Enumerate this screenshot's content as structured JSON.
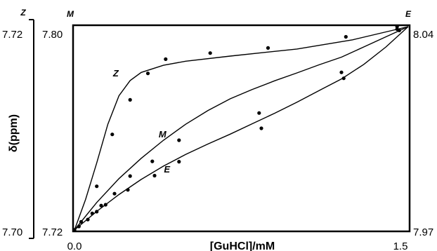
{
  "chart_data": {
    "type": "scatter",
    "title": "",
    "xlabel": "[GuHCl]/mM",
    "ylabel": "δ(ppm)",
    "xlim": [
      0.0,
      1.5
    ],
    "x_ticks": [
      "0.0",
      "1.5"
    ],
    "axes": {
      "Z": {
        "tag": "Z",
        "ylim": [
          7.7,
          7.72
        ],
        "ticks": [
          "7.70",
          "7.72"
        ],
        "side": "far-left"
      },
      "M": {
        "tag": "M",
        "ylim": [
          7.72,
          7.8
        ],
        "ticks": [
          "7.72",
          "7.80"
        ],
        "side": "left"
      },
      "E": {
        "tag": "E",
        "ylim": [
          7.97,
          8.04
        ],
        "ticks": [
          "7.97",
          "8.04"
        ],
        "side": "right"
      }
    },
    "grid": false,
    "legend": "none",
    "series": [
      {
        "name": "Z",
        "axis": "Z",
        "points": [
          [
            0.0,
            7.7
          ],
          [
            0.1,
            7.7043
          ],
          [
            0.17,
            7.7094
          ],
          [
            0.25,
            7.7128
          ],
          [
            0.33,
            7.7154
          ],
          [
            0.41,
            7.7168
          ],
          [
            0.61,
            7.7174
          ],
          [
            0.87,
            7.7179
          ],
          [
            1.22,
            7.719
          ],
          [
            1.45,
            7.72
          ]
        ],
        "fit": [
          [
            0.0,
            7.7
          ],
          [
            0.05,
            7.703
          ],
          [
            0.1,
            7.7066
          ],
          [
            0.15,
            7.7104
          ],
          [
            0.2,
            7.7132
          ],
          [
            0.25,
            7.7147
          ],
          [
            0.3,
            7.7155
          ],
          [
            0.4,
            7.7162
          ],
          [
            0.5,
            7.7166
          ],
          [
            0.7,
            7.7171
          ],
          [
            1.0,
            7.7178
          ],
          [
            1.25,
            7.7187
          ],
          [
            1.5,
            7.72
          ]
        ]
      },
      {
        "name": "M",
        "axis": "M",
        "points": [
          [
            0.0,
            7.72
          ],
          [
            0.03,
            7.7232
          ],
          [
            0.08,
            7.7265
          ],
          [
            0.12,
            7.7296
          ],
          [
            0.18,
            7.7343
          ],
          [
            0.25,
            7.7412
          ],
          [
            0.35,
            7.747
          ],
          [
            0.47,
            7.7553
          ],
          [
            0.83,
            7.766
          ],
          [
            1.2,
            7.782
          ],
          [
            1.45,
            7.799
          ]
        ],
        "fit": [
          [
            0.0,
            7.72
          ],
          [
            0.1,
            7.7308
          ],
          [
            0.2,
            7.7402
          ],
          [
            0.3,
            7.7482
          ],
          [
            0.4,
            7.7553
          ],
          [
            0.5,
            7.7616
          ],
          [
            0.6,
            7.767
          ],
          [
            0.7,
            7.7716
          ],
          [
            0.8,
            7.7753
          ],
          [
            0.9,
            7.7787
          ],
          [
            1.0,
            7.7818
          ],
          [
            1.1,
            7.785
          ],
          [
            1.2,
            7.788
          ],
          [
            1.3,
            7.792
          ],
          [
            1.4,
            7.796
          ],
          [
            1.5,
            7.8
          ]
        ]
      },
      {
        "name": "E",
        "axis": "E",
        "points": [
          [
            0.02,
            7.9712
          ],
          [
            0.06,
            7.9736
          ],
          [
            0.1,
            7.9763
          ],
          [
            0.14,
            7.9787
          ],
          [
            0.24,
            7.9838
          ],
          [
            0.36,
            7.9887
          ],
          [
            0.47,
            7.9935
          ],
          [
            0.84,
            8.005
          ],
          [
            1.21,
            8.0222
          ],
          [
            1.46,
            8.0387
          ]
        ],
        "fit": [
          [
            0.0,
            7.97
          ],
          [
            0.1,
            7.9764
          ],
          [
            0.2,
            7.9822
          ],
          [
            0.3,
            7.9874
          ],
          [
            0.4,
            7.992
          ],
          [
            0.5,
            7.996
          ],
          [
            0.6,
            7.9996
          ],
          [
            0.7,
            8.003
          ],
          [
            0.8,
            8.0066
          ],
          [
            0.9,
            8.0102
          ],
          [
            1.0,
            8.014
          ],
          [
            1.1,
            8.018
          ],
          [
            1.2,
            8.022
          ],
          [
            1.3,
            8.027
          ],
          [
            1.4,
            8.033
          ],
          [
            1.5,
            8.04
          ]
        ]
      }
    ],
    "curve_labels": [
      {
        "text": "Z",
        "x": 0.23,
        "y": 7.7147,
        "axis": "Z"
      },
      {
        "text": "M",
        "x": 0.44,
        "y": 7.7548,
        "axis": "M"
      },
      {
        "text": "E",
        "x": 0.46,
        "y": 7.9884,
        "axis": "E"
      }
    ]
  }
}
